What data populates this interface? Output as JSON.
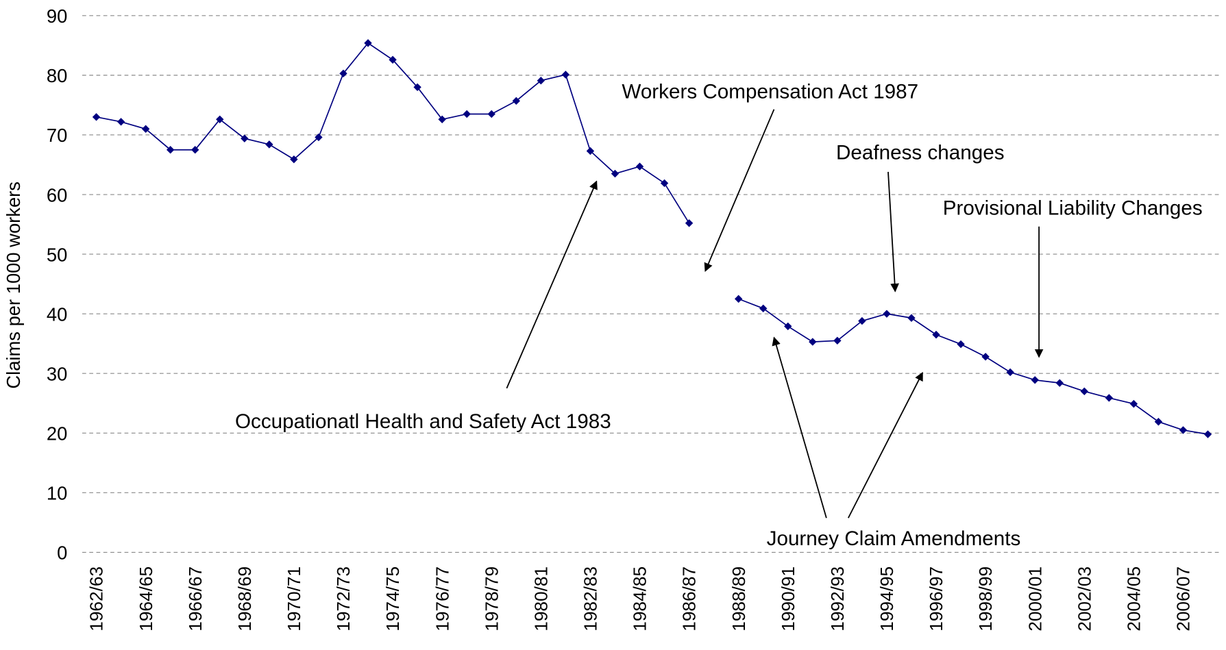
{
  "chart_data": {
    "type": "line",
    "y_label": "Claims per 1000 workers",
    "categories": [
      "1962/63",
      null,
      "1964/65",
      null,
      "1966/67",
      null,
      "1968/69",
      null,
      "1970/71",
      null,
      "1972/73",
      null,
      "1974/75",
      null,
      "1976/77",
      null,
      "1978/79",
      null,
      "1980/81",
      null,
      "1982/83",
      null,
      "1984/85",
      null,
      "1986/87",
      null,
      "1988/89",
      null,
      "1990/91",
      null,
      "1992/93",
      null,
      "1994/95",
      null,
      "1996/97",
      null,
      "1998/99",
      null,
      "2000/01",
      null,
      "2002/03",
      null,
      "2004/05",
      null,
      "2006/07",
      null
    ],
    "series": [
      {
        "color": "#000080",
        "values": [
          73,
          72.2,
          71,
          67.5,
          67.5,
          72.6,
          69.4,
          68.4,
          65.9,
          69.6,
          80.3,
          85.4,
          82.6,
          78,
          72.6,
          73.5,
          73.5,
          75.7,
          79.1,
          80.1,
          67.3,
          63.5,
          64.7,
          61.9,
          55.2,
          null,
          42.5,
          40.9,
          37.9,
          35.3,
          35.5,
          38.8,
          40,
          39.3,
          36.5,
          34.9,
          32.8,
          30.2,
          28.9,
          28.4,
          27,
          25.9,
          24.9,
          21.9,
          20.5,
          19.8
        ]
      }
    ],
    "ylim": [
      0,
      90
    ],
    "yticks": [
      0,
      10,
      20,
      30,
      40,
      50,
      60,
      70,
      80,
      90
    ],
    "grid": true,
    "annotations": [
      "Workers Compensation Act 1987",
      "Deafness changes",
      "Provisional Liability Changes",
      "Occupationatl Health and Safety Act 1983",
      "Journey Claim Amendments"
    ]
  }
}
